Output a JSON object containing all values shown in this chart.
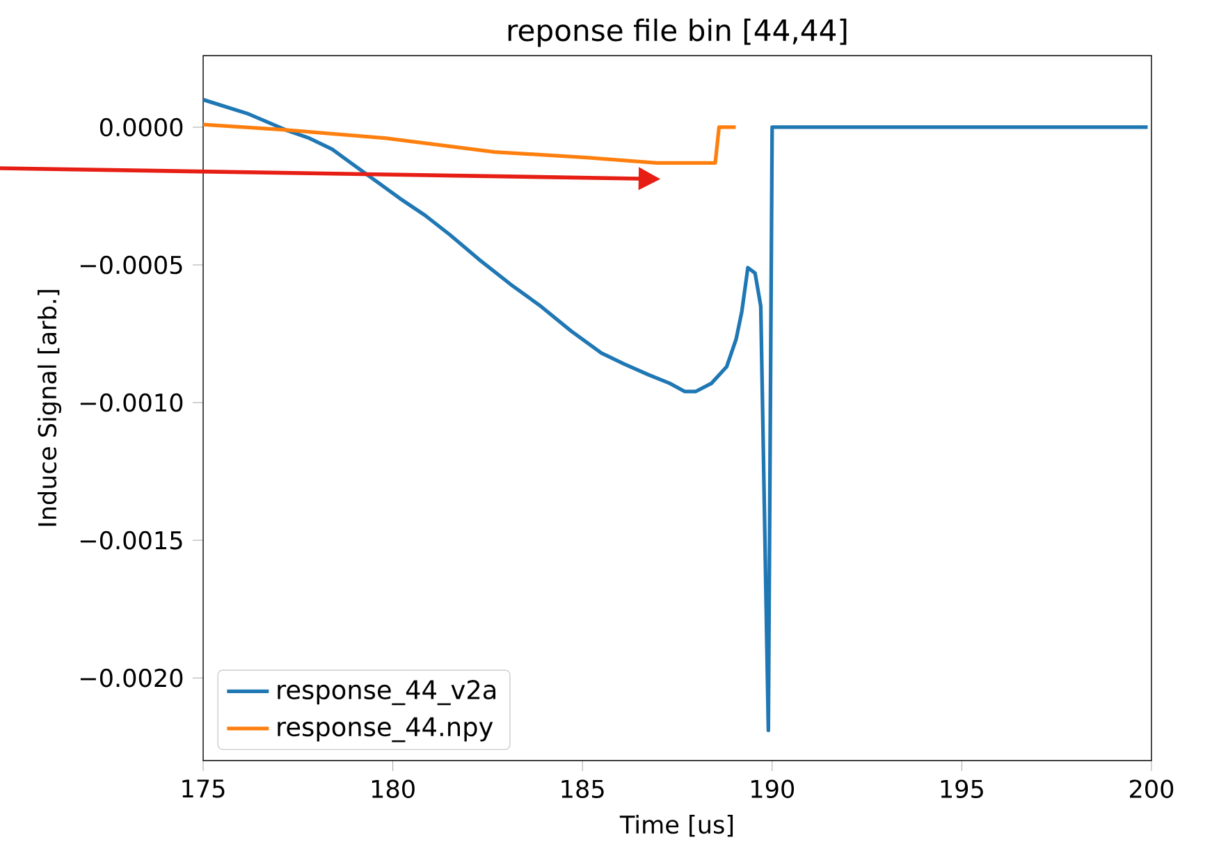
{
  "chart_data": {
    "type": "line",
    "title": "reponse file bin [44,44]",
    "xlabel": "Time [us]",
    "ylabel": "Induce Signal [arb.]",
    "xlim": [
      175,
      200
    ],
    "ylim": [
      -0.0023,
      0.00026
    ],
    "xticks": [
      175,
      180,
      185,
      190,
      195,
      200
    ],
    "yticks": [
      {
        "value": 0,
        "label": "0.0000"
      },
      {
        "value": -0.0005,
        "label": "−0.0005"
      },
      {
        "value": -0.001,
        "label": "−0.0010"
      },
      {
        "value": -0.0015,
        "label": "−0.0015"
      },
      {
        "value": -0.002,
        "label": "−0.0020"
      }
    ],
    "grid": false,
    "legend": "bottom left",
    "marker": "none",
    "line_style": "solid",
    "series": [
      {
        "name": "response_44_v2a",
        "color": "#1f77b4",
        "x": [
          175,
          176.16,
          177.18,
          177.8,
          178.4,
          179.0,
          179.6,
          180.2,
          180.85,
          181.5,
          182.27,
          183.1,
          183.9,
          184.7,
          185.5,
          186.1,
          186.76,
          187.3,
          187.7,
          187.98,
          188.4,
          188.8,
          189.05,
          189.2,
          189.36,
          189.55,
          189.7,
          189.9,
          190.0,
          199.9
        ],
        "values": [
          0.0001,
          5e-05,
          -1e-05,
          -4e-05,
          -8e-05,
          -0.00014,
          -0.0002,
          -0.00026,
          -0.00032,
          -0.00039,
          -0.00048,
          -0.00057,
          -0.00065,
          -0.00074,
          -0.00082,
          -0.00086,
          -0.0009,
          -0.00093,
          -0.00096,
          -0.00096,
          -0.00093,
          -0.00087,
          -0.00077,
          -0.00067,
          -0.00051,
          -0.00053,
          -0.00065,
          -0.00219,
          0,
          0
        ]
      },
      {
        "name": "response_44.npy",
        "color": "#ff7f0e",
        "x": [
          175,
          177.18,
          179.83,
          182.68,
          185.1,
          186.96,
          188.5,
          188.6,
          189.04
        ],
        "values": [
          1e-05,
          -1e-05,
          -4e-05,
          -9e-05,
          -0.00011,
          -0.00013,
          -0.00013,
          0,
          0
        ]
      }
    ]
  }
}
